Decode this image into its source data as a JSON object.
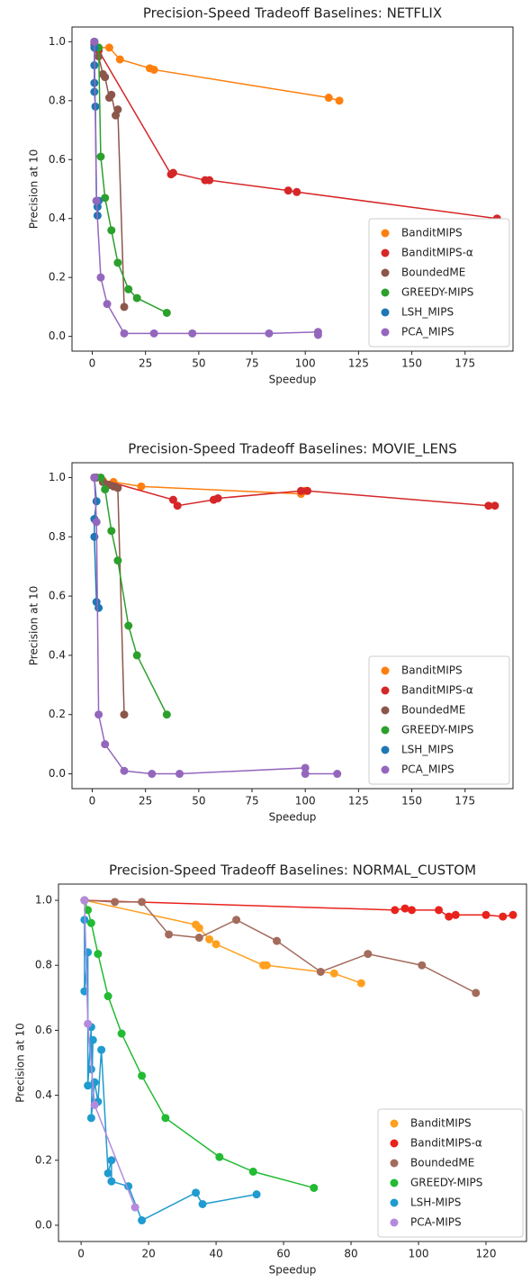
{
  "chart_data": [
    {
      "type": "line",
      "title": "Precision-Speed Tradeoff Baselines: NETFLIX",
      "xlabel": "Speedup",
      "ylabel": "Precision at 10",
      "xlim": [
        -9.5,
        197.5
      ],
      "ylim": [
        -0.05,
        1.05
      ],
      "xticks": [
        0,
        25,
        50,
        75,
        100,
        125,
        150,
        175
      ],
      "yticks": [
        {
          "value": 0,
          "label": "0.0"
        },
        {
          "value": 0.2,
          "label": "0.2"
        },
        {
          "value": 0.4,
          "label": "0.4"
        },
        {
          "value": 0.6,
          "label": "0.6"
        },
        {
          "value": 0.8,
          "label": "0.8"
        },
        {
          "value": 1,
          "label": "1.0"
        }
      ],
      "legend": "lower right",
      "series": [
        {
          "name": "BanditMIPS",
          "color": "#ff7f0e",
          "x": [
            1,
            3,
            8,
            13,
            27,
            29,
            111,
            116
          ],
          "values": [
            1.0,
            0.98,
            0.98,
            0.94,
            0.91,
            0.905,
            0.81,
            0.8
          ]
        },
        {
          "name": "BanditMIPS-α",
          "color": "#d62728",
          "x": [
            1,
            3,
            37,
            38,
            53,
            55,
            92,
            96,
            190
          ],
          "values": [
            0.99,
            0.97,
            0.55,
            0.555,
            0.53,
            0.53,
            0.495,
            0.49,
            0.4
          ]
        },
        {
          "name": "BoundedME",
          "color": "#8c564b",
          "x": [
            1,
            3,
            5,
            6,
            8,
            9,
            11,
            12,
            15
          ],
          "values": [
            1.0,
            0.95,
            0.89,
            0.88,
            0.81,
            0.82,
            0.75,
            0.77,
            0.1
          ]
        },
        {
          "name": "GREEDY-MIPS",
          "color": "#2ca02c",
          "x": [
            1,
            3,
            4,
            6,
            9,
            12,
            17,
            21,
            35
          ],
          "values": [
            1.0,
            0.98,
            0.61,
            0.47,
            0.36,
            0.25,
            0.16,
            0.13,
            0.08
          ]
        },
        {
          "name": "LSH_MIPS",
          "color": "#1f77b4",
          "x": [
            1,
            1,
            1,
            1,
            1.5,
            2,
            2.5,
            2.5,
            3
          ],
          "values": [
            0.98,
            0.92,
            0.86,
            0.83,
            0.78,
            0.46,
            0.44,
            0.41,
            0.46
          ]
        },
        {
          "name": "PCA_MIPS",
          "color": "#9467bd",
          "x": [
            1,
            2,
            4,
            7,
            15,
            29,
            47,
            83,
            106,
            106
          ],
          "values": [
            1.0,
            0.46,
            0.2,
            0.11,
            0.01,
            0.01,
            0.01,
            0.01,
            0.015,
            0.005
          ]
        }
      ]
    },
    {
      "type": "line",
      "title": "Precision-Speed Tradeoff Baselines: MOVIE_LENS",
      "xlabel": "Speedup",
      "ylabel": "Precision at 10",
      "xlim": [
        -9.5,
        197.5
      ],
      "ylim": [
        -0.05,
        1.05
      ],
      "xticks": [
        0,
        25,
        50,
        75,
        100,
        125,
        150,
        175
      ],
      "yticks": [
        {
          "value": 0,
          "label": "0.0"
        },
        {
          "value": 0.2,
          "label": "0.2"
        },
        {
          "value": 0.4,
          "label": "0.4"
        },
        {
          "value": 0.6,
          "label": "0.6"
        },
        {
          "value": 0.8,
          "label": "0.8"
        },
        {
          "value": 1,
          "label": "1.0"
        }
      ],
      "legend": "lower right",
      "series": [
        {
          "name": "BanditMIPS",
          "color": "#ff7f0e",
          "x": [
            1,
            5,
            10,
            23,
            98,
            100
          ],
          "values": [
            1.0,
            0.99,
            0.985,
            0.97,
            0.945,
            0.955
          ]
        },
        {
          "name": "BanditMIPS-α",
          "color": "#d62728",
          "x": [
            1,
            38,
            40,
            57,
            59,
            98,
            101,
            186,
            189
          ],
          "values": [
            1.0,
            0.925,
            0.905,
            0.925,
            0.93,
            0.955,
            0.955,
            0.905,
            0.905
          ]
        },
        {
          "name": "BoundedME",
          "color": "#8c564b",
          "x": [
            2,
            5,
            8,
            10,
            12,
            15
          ],
          "values": [
            1.0,
            0.985,
            0.975,
            0.97,
            0.965,
            0.2
          ]
        },
        {
          "name": "GREEDY-MIPS",
          "color": "#2ca02c",
          "x": [
            4,
            6,
            9,
            12,
            17,
            21,
            35
          ],
          "values": [
            1.0,
            0.96,
            0.82,
            0.72,
            0.5,
            0.4,
            0.2
          ]
        },
        {
          "name": "LSH_MIPS",
          "color": "#1f77b4",
          "x": [
            1,
            2,
            1,
            1,
            2,
            3
          ],
          "values": [
            1.0,
            0.92,
            0.86,
            0.8,
            0.58,
            0.56
          ]
        },
        {
          "name": "PCA_MIPS",
          "color": "#9467bd",
          "x": [
            1,
            2,
            3,
            6,
            15,
            28,
            41,
            100,
            100,
            115
          ],
          "values": [
            1.0,
            0.85,
            0.2,
            0.1,
            0.01,
            0.0,
            0.0,
            0.02,
            0.0,
            0.0
          ]
        }
      ]
    },
    {
      "type": "line",
      "title": "Precision-Speed Tradeoff Baselines: NORMAL_CUSTOM",
      "xlabel": "Speedup",
      "ylabel": "Precision at 10",
      "xlim": [
        -6.7,
        132
      ],
      "ylim": [
        -0.05,
        1.05
      ],
      "xticks": [
        0,
        20,
        40,
        60,
        80,
        100,
        120
      ],
      "yticks": [
        {
          "value": 0,
          "label": "0.0"
        },
        {
          "value": 0.2,
          "label": "0.2"
        },
        {
          "value": 0.4,
          "label": "0.4"
        },
        {
          "value": 0.6,
          "label": "0.6"
        },
        {
          "value": 0.8,
          "label": "0.8"
        },
        {
          "value": 1,
          "label": "1.0"
        }
      ],
      "legend": "lower right",
      "series": [
        {
          "name": "BanditMIPS",
          "color": "#ffa020",
          "x": [
            1,
            34,
            35,
            38,
            40,
            54,
            55,
            75,
            83
          ],
          "values": [
            1.0,
            0.925,
            0.915,
            0.88,
            0.865,
            0.8,
            0.8,
            0.775,
            0.745
          ]
        },
        {
          "name": "BanditMIPS-α",
          "color": "#e8231c",
          "x": [
            1,
            93,
            96,
            98,
            106,
            109,
            111,
            120,
            125,
            128
          ],
          "values": [
            1.0,
            0.97,
            0.975,
            0.97,
            0.97,
            0.95,
            0.955,
            0.955,
            0.95,
            0.955
          ]
        },
        {
          "name": "BoundedME",
          "color": "#a36b5c",
          "x": [
            1,
            10,
            18,
            26,
            35,
            46,
            58,
            71,
            85,
            101,
            117
          ],
          "values": [
            1.0,
            0.995,
            0.995,
            0.895,
            0.885,
            0.94,
            0.875,
            0.78,
            0.835,
            0.8,
            0.715
          ]
        },
        {
          "name": "GREEDY-MIPS",
          "color": "#22bb33",
          "x": [
            1,
            2,
            3,
            5,
            8,
            12,
            18,
            25,
            41,
            51,
            69
          ],
          "values": [
            1.0,
            0.97,
            0.93,
            0.835,
            0.705,
            0.59,
            0.46,
            0.33,
            0.21,
            0.165,
            0.115
          ]
        },
        {
          "name": "LSH-MIPS",
          "color": "#1f9bcf",
          "x": [
            1,
            1,
            2,
            2,
            3,
            3,
            3.5,
            3,
            4,
            5,
            6,
            8,
            9,
            9,
            14,
            18,
            34,
            36,
            52
          ],
          "values": [
            0.94,
            0.72,
            0.84,
            0.43,
            0.61,
            0.48,
            0.57,
            0.33,
            0.44,
            0.38,
            0.54,
            0.16,
            0.2,
            0.135,
            0.12,
            0.015,
            0.1,
            0.065,
            0.095
          ]
        },
        {
          "name": "PCA-MIPS",
          "color": "#b48ade",
          "x": [
            1,
            2,
            4,
            16
          ],
          "values": [
            1.0,
            0.62,
            0.37,
            0.055
          ]
        }
      ]
    }
  ]
}
